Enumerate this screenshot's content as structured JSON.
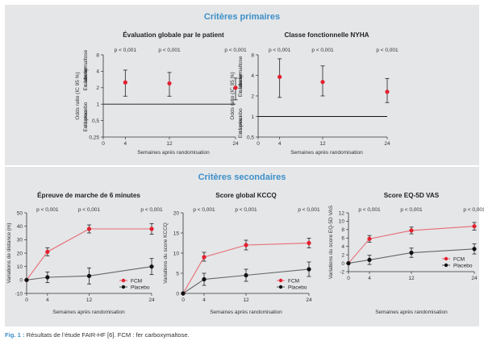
{
  "sections": {
    "primary": "Critères primaires",
    "secondary": "Critères secondaires"
  },
  "caption": {
    "label": "Fig. 1 :",
    "text": "Résultats de l’étude FAIR-HF [6]. FCM : fer carboxymaltose."
  },
  "colors": {
    "accent": "#3d8fc8",
    "fcm": "#e3202f",
    "placebo": "#111111",
    "panel_bg": "#e4e6e8"
  },
  "chart_data": [
    {
      "type": "scatter",
      "title": "Évaluation globale par le patient",
      "xlabel": "Semaines après randomisation",
      "ylabel": "Odds ratio (IC 95 %)",
      "y_side_labels": {
        "top": "En faveur du fer carboxymaltose",
        "bottom": "En faveur du placebo"
      },
      "y_scale": "log",
      "ylim": [
        0.25,
        8
      ],
      "y_ticks": [
        0.25,
        0.5,
        1,
        2,
        4,
        8
      ],
      "y_tick_labels": [
        "0,25",
        "0,5",
        "1",
        "2",
        "4",
        "8"
      ],
      "x_ticks": [
        0,
        4,
        12,
        24
      ],
      "reference_line": 1,
      "p_values": [
        "p < 0,001",
        "p < 0,001",
        "p < 0,001"
      ],
      "series": [
        {
          "x": [
            4,
            12,
            24
          ],
          "values": [
            2.5,
            2.4,
            2.0
          ],
          "lower": [
            1.4,
            1.4,
            1.2
          ],
          "upper": [
            4.2,
            3.8,
            3.0
          ]
        }
      ]
    },
    {
      "type": "scatter",
      "title": "Classe fonctionnelle NYHA",
      "xlabel": "Semaines après randomisation",
      "ylabel": "Odds ratio (IC 95 %)",
      "y_side_labels": {
        "top": "En faveur du fer carboxymaltose",
        "bottom": "En faveur du placebo"
      },
      "y_scale": "log",
      "ylim": [
        0.5,
        8
      ],
      "y_ticks": [
        0.5,
        1,
        2,
        4,
        8
      ],
      "y_tick_labels": [
        "0,5",
        "1",
        "2",
        "4",
        "8"
      ],
      "x_ticks": [
        0,
        4,
        12,
        24
      ],
      "reference_line": 1,
      "p_values": [
        "p < 0,001",
        "p < 0,001",
        "p < 0,001"
      ],
      "series": [
        {
          "x": [
            4,
            12,
            24
          ],
          "values": [
            3.8,
            3.2,
            2.3
          ],
          "lower": [
            1.9,
            2.0,
            1.6
          ],
          "upper": [
            7.0,
            5.5,
            3.6
          ]
        }
      ]
    },
    {
      "type": "line",
      "title": "Épreuve de marche de 6 minutes",
      "xlabel": "Semaines après randomisation",
      "ylabel": "Variations de distance (m)",
      "ylim": [
        -10,
        50
      ],
      "y_ticks": [
        -10,
        0,
        10,
        20,
        30,
        40,
        50
      ],
      "x_ticks": [
        0,
        4,
        12,
        24
      ],
      "p_values": [
        "p < 0,001",
        "p < 0,001",
        "p < 0,001"
      ],
      "legend_position": "bottom-right",
      "series": [
        {
          "name": "FCM",
          "x": [
            0,
            4,
            12,
            24
          ],
          "values": [
            0,
            21,
            38,
            38
          ],
          "lower": [
            0,
            18,
            35,
            34
          ],
          "upper": [
            0,
            24,
            41,
            42
          ]
        },
        {
          "name": "Placebo",
          "x": [
            0,
            4,
            12,
            24
          ],
          "values": [
            0,
            2,
            3,
            10
          ],
          "lower": [
            0,
            -2,
            -3,
            4
          ],
          "upper": [
            0,
            6,
            9,
            16
          ]
        }
      ]
    },
    {
      "type": "line",
      "title": "Score global KCCQ",
      "xlabel": "Semaines après randomisation",
      "ylabel": "Variations du score KCCQ",
      "ylim": [
        0,
        20
      ],
      "y_ticks": [
        0,
        5,
        10,
        15,
        20
      ],
      "x_ticks": [
        0,
        4,
        12,
        24
      ],
      "p_values": [
        "p < 0,001",
        "p < 0,001",
        "p < 0,001"
      ],
      "legend_position": "bottom-right",
      "series": [
        {
          "name": "FCM",
          "x": [
            0,
            4,
            12,
            24
          ],
          "values": [
            0,
            9,
            12,
            12.5
          ],
          "lower": [
            0,
            8,
            10.8,
            11.3
          ],
          "upper": [
            0,
            10.2,
            13.2,
            13.7
          ]
        },
        {
          "name": "Placebo",
          "x": [
            0,
            4,
            12,
            24
          ],
          "values": [
            0,
            3.5,
            4.5,
            6
          ],
          "lower": [
            0,
            2,
            3,
            4.2
          ],
          "upper": [
            0,
            5,
            6,
            7.8
          ]
        }
      ]
    },
    {
      "type": "line",
      "title": "Score EQ-5D VAS",
      "xlabel": "Semaines après randomisation",
      "ylabel": "Variations du score EQ-5D VAS",
      "ylim": [
        -2,
        12
      ],
      "y_ticks": [
        -2,
        0,
        2,
        4,
        6,
        8,
        10,
        12
      ],
      "x_ticks": [
        0,
        4,
        12,
        24
      ],
      "p_values": [
        "p < 0,001",
        "p < 0,001",
        "p < 0,001"
      ],
      "legend_position": "bottom-right",
      "series": [
        {
          "name": "FCM",
          "x": [
            0,
            4,
            12,
            24
          ],
          "values": [
            0,
            5.8,
            7.8,
            8.8
          ],
          "lower": [
            0,
            5,
            7,
            7.9
          ],
          "upper": [
            0,
            6.6,
            8.6,
            9.7
          ]
        },
        {
          "name": "Placebo",
          "x": [
            0,
            4,
            12,
            24
          ],
          "values": [
            0,
            0.8,
            2.5,
            3.4
          ],
          "lower": [
            0,
            -0.3,
            1.4,
            2.2
          ],
          "upper": [
            0,
            1.9,
            3.6,
            4.6
          ]
        }
      ]
    }
  ]
}
